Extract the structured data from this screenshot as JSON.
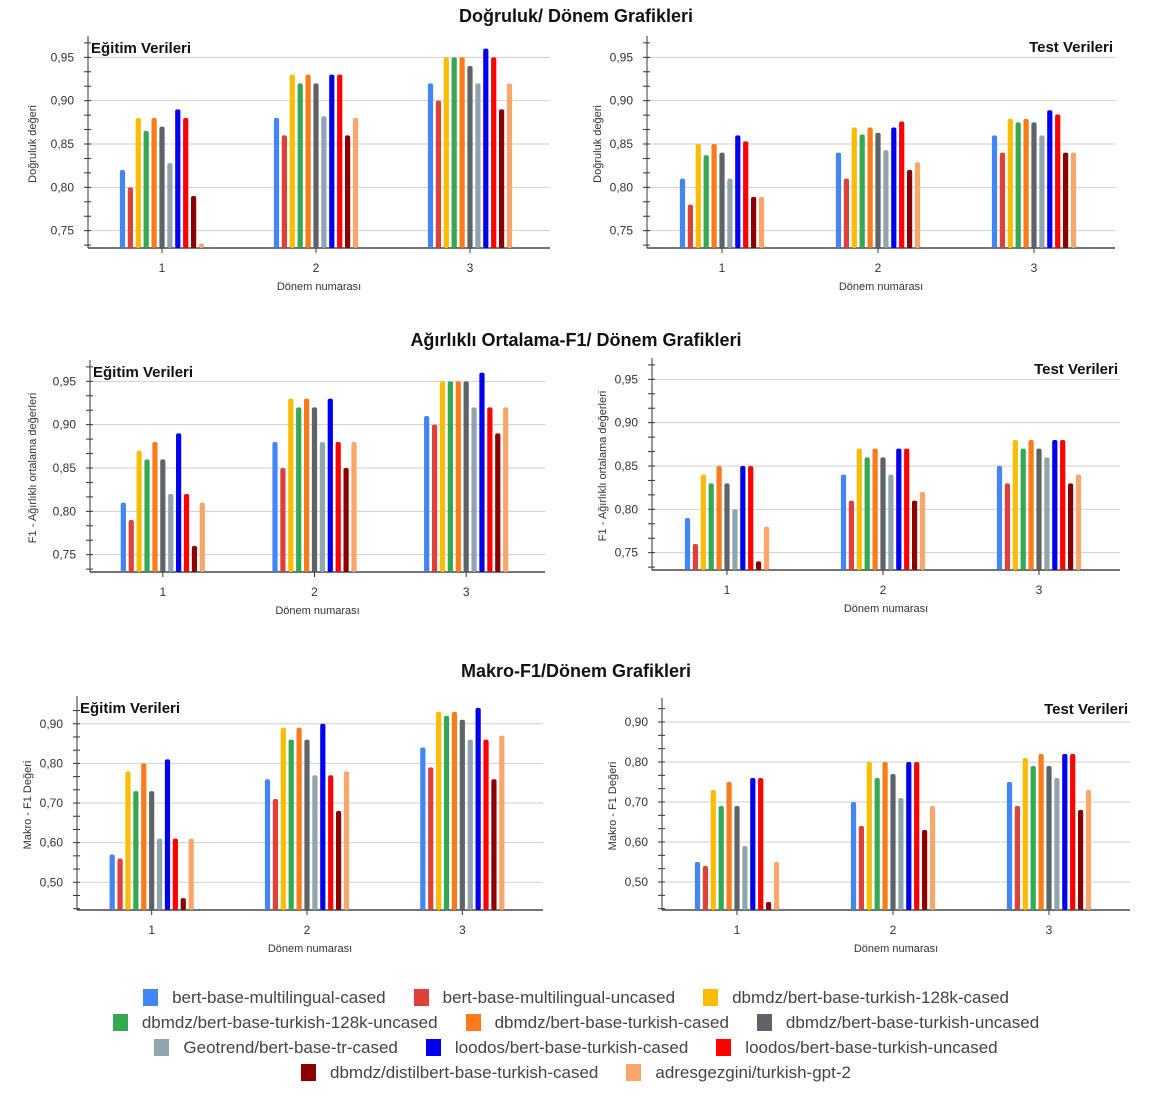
{
  "sections": [
    {
      "title": "Doğruluk/ Dönem Grafikleri"
    },
    {
      "title": "Ağırlıklı Ortalama-F1/ Dönem Grafikleri"
    },
    {
      "title": "Makro-F1/Dönem Grafikleri"
    }
  ],
  "legend": {
    "rows": [
      [
        0,
        1,
        2
      ],
      [
        3,
        4,
        5
      ],
      [
        6,
        7,
        8
      ],
      [
        9,
        10
      ]
    ]
  },
  "series_meta": [
    {
      "name": "bert-base-multilingual-cased",
      "color": "#4285f4"
    },
    {
      "name": "bert-base-multilingual-uncased",
      "color": "#e0403a"
    },
    {
      "name": "dbmdz/bert-base-turkish-128k-cased",
      "color": "#fbbc04"
    },
    {
      "name": "dbmdz/bert-base-turkish-128k-uncased",
      "color": "#34a853"
    },
    {
      "name": "dbmdz/bert-base-turkish-cased",
      "color": "#fa7b17"
    },
    {
      "name": "dbmdz/bert-base-turkish-uncased",
      "color": "#5f6368"
    },
    {
      "name": "Geotrend/bert-base-tr-cased",
      "color": "#8fa6b0"
    },
    {
      "name": "loodos/bert-base-turkish-cased",
      "color": "#0000ee"
    },
    {
      "name": "loodos/bert-base-turkish-uncased",
      "color": "#ff0000"
    },
    {
      "name": "dbmdz/distilbert-base-turkish-cased",
      "color": "#8b0000"
    },
    {
      "name": "adresgezgini/turkish-gpt-2",
      "color": "#f9a66c"
    }
  ],
  "chart_data": [
    {
      "type": "bar",
      "title": "Eğitim Verileri",
      "title_align": "left",
      "xlabel": "Dönem numarası",
      "ylabel": "Doğruluk değeri",
      "categories": [
        "1",
        "2",
        "3"
      ],
      "yticks": [
        "0,75",
        "0,80",
        "0,85",
        "0,90",
        "0,95"
      ],
      "ytick_values": [
        0.75,
        0.8,
        0.85,
        0.9,
        0.95
      ],
      "ylim": [
        0.73,
        0.97
      ],
      "grid": true,
      "series": [
        {
          "name": "bert-base-multilingual-cased",
          "values": [
            0.82,
            0.88,
            0.92
          ]
        },
        {
          "name": "bert-base-multilingual-uncased",
          "values": [
            0.8,
            0.86,
            0.9
          ]
        },
        {
          "name": "dbmdz/bert-base-turkish-128k-cased",
          "values": [
            0.88,
            0.93,
            0.95
          ]
        },
        {
          "name": "dbmdz/bert-base-turkish-128k-uncased",
          "values": [
            0.865,
            0.92,
            0.95
          ]
        },
        {
          "name": "dbmdz/bert-base-turkish-cased",
          "values": [
            0.88,
            0.93,
            0.95
          ]
        },
        {
          "name": "dbmdz/bert-base-turkish-uncased",
          "values": [
            0.87,
            0.92,
            0.94
          ]
        },
        {
          "name": "Geotrend/bert-base-tr-cased",
          "values": [
            0.828,
            0.882,
            0.92
          ]
        },
        {
          "name": "loodos/bert-base-turkish-cased",
          "values": [
            0.89,
            0.93,
            0.96
          ]
        },
        {
          "name": "loodos/bert-base-turkish-uncased",
          "values": [
            0.88,
            0.93,
            0.95
          ]
        },
        {
          "name": "dbmdz/distilbert-base-turkish-cased",
          "values": [
            0.79,
            0.86,
            0.89
          ]
        },
        {
          "name": "adresgezgini/turkish-gpt-2",
          "values": [
            0.735,
            0.88,
            0.92
          ]
        }
      ]
    },
    {
      "type": "bar",
      "title": "Test Verileri",
      "title_align": "right",
      "xlabel": "Dönem numarası",
      "ylabel": "Doğruluk değeri",
      "categories": [
        "1",
        "2",
        "3"
      ],
      "yticks": [
        "0,75",
        "0,80",
        "0,85",
        "0,90",
        "0,95"
      ],
      "ytick_values": [
        0.75,
        0.8,
        0.85,
        0.9,
        0.95
      ],
      "ylim": [
        0.73,
        0.97
      ],
      "grid": true,
      "series": [
        {
          "name": "bert-base-multilingual-cased",
          "values": [
            0.81,
            0.84,
            0.86
          ]
        },
        {
          "name": "bert-base-multilingual-uncased",
          "values": [
            0.78,
            0.81,
            0.84
          ]
        },
        {
          "name": "dbmdz/bert-base-turkish-128k-cased",
          "values": [
            0.85,
            0.869,
            0.879
          ]
        },
        {
          "name": "dbmdz/bert-base-turkish-128k-uncased",
          "values": [
            0.837,
            0.861,
            0.875
          ]
        },
        {
          "name": "dbmdz/bert-base-turkish-cased",
          "values": [
            0.85,
            0.869,
            0.879
          ]
        },
        {
          "name": "dbmdz/bert-base-turkish-uncased",
          "values": [
            0.84,
            0.863,
            0.875
          ]
        },
        {
          "name": "Geotrend/bert-base-tr-cased",
          "values": [
            0.81,
            0.843,
            0.86
          ]
        },
        {
          "name": "loodos/bert-base-turkish-cased",
          "values": [
            0.86,
            0.869,
            0.889
          ]
        },
        {
          "name": "loodos/bert-base-turkish-uncased",
          "values": [
            0.853,
            0.876,
            0.884
          ]
        },
        {
          "name": "dbmdz/distilbert-base-turkish-cased",
          "values": [
            0.789,
            0.82,
            0.84
          ]
        },
        {
          "name": "adresgezgini/turkish-gpt-2",
          "values": [
            0.789,
            0.829,
            0.84
          ]
        }
      ]
    },
    {
      "type": "bar",
      "title": "Eğitim Verileri",
      "title_align": "left",
      "xlabel": "Dönem numarası",
      "ylabel": "F1 - Ağırlıklı ortalama değerleri",
      "categories": [
        "1",
        "2",
        "3"
      ],
      "yticks": [
        "0,75",
        "0,80",
        "0,85",
        "0,90",
        "0,95"
      ],
      "ytick_values": [
        0.75,
        0.8,
        0.85,
        0.9,
        0.95
      ],
      "ylim": [
        0.73,
        0.97
      ],
      "grid": true,
      "series": [
        {
          "name": "bert-base-multilingual-cased",
          "values": [
            0.81,
            0.88,
            0.91
          ]
        },
        {
          "name": "bert-base-multilingual-uncased",
          "values": [
            0.79,
            0.85,
            0.9
          ]
        },
        {
          "name": "dbmdz/bert-base-turkish-128k-cased",
          "values": [
            0.87,
            0.93,
            0.95
          ]
        },
        {
          "name": "dbmdz/bert-base-turkish-128k-uncased",
          "values": [
            0.86,
            0.92,
            0.95
          ]
        },
        {
          "name": "dbmdz/bert-base-turkish-cased",
          "values": [
            0.88,
            0.93,
            0.95
          ]
        },
        {
          "name": "dbmdz/bert-base-turkish-uncased",
          "values": [
            0.86,
            0.92,
            0.95
          ]
        },
        {
          "name": "Geotrend/bert-base-tr-cased",
          "values": [
            0.82,
            0.88,
            0.92
          ]
        },
        {
          "name": "loodos/bert-base-turkish-cased",
          "values": [
            0.89,
            0.93,
            0.96
          ]
        },
        {
          "name": "loodos/bert-base-turkish-uncased",
          "values": [
            0.82,
            0.88,
            0.92
          ]
        },
        {
          "name": "dbmdz/distilbert-base-turkish-cased",
          "values": [
            0.76,
            0.85,
            0.89
          ]
        },
        {
          "name": "adresgezgini/turkish-gpt-2",
          "values": [
            0.81,
            0.88,
            0.92
          ]
        }
      ]
    },
    {
      "type": "bar",
      "title": "Test Verileri",
      "title_align": "right",
      "xlabel": "Dönem numarası",
      "ylabel": "F1 - Ağırlıklı ortalama değerleri",
      "categories": [
        "1",
        "2",
        "3"
      ],
      "yticks": [
        "0,75",
        "0,80",
        "0,85",
        "0,90",
        "0,95"
      ],
      "ytick_values": [
        0.75,
        0.8,
        0.85,
        0.9,
        0.95
      ],
      "ylim": [
        0.73,
        0.97
      ],
      "grid": true,
      "series": [
        {
          "name": "bert-base-multilingual-cased",
          "values": [
            0.79,
            0.84,
            0.85
          ]
        },
        {
          "name": "bert-base-multilingual-uncased",
          "values": [
            0.76,
            0.81,
            0.83
          ]
        },
        {
          "name": "dbmdz/bert-base-turkish-128k-cased",
          "values": [
            0.84,
            0.87,
            0.88
          ]
        },
        {
          "name": "dbmdz/bert-base-turkish-128k-uncased",
          "values": [
            0.83,
            0.86,
            0.87
          ]
        },
        {
          "name": "dbmdz/bert-base-turkish-cased",
          "values": [
            0.85,
            0.87,
            0.88
          ]
        },
        {
          "name": "dbmdz/bert-base-turkish-uncased",
          "values": [
            0.83,
            0.86,
            0.87
          ]
        },
        {
          "name": "Geotrend/bert-base-tr-cased",
          "values": [
            0.8,
            0.84,
            0.86
          ]
        },
        {
          "name": "loodos/bert-base-turkish-cased",
          "values": [
            0.85,
            0.87,
            0.88
          ]
        },
        {
          "name": "loodos/bert-base-turkish-uncased",
          "values": [
            0.85,
            0.87,
            0.88
          ]
        },
        {
          "name": "dbmdz/distilbert-base-turkish-cased",
          "values": [
            0.74,
            0.81,
            0.83
          ]
        },
        {
          "name": "adresgezgini/turkish-gpt-2",
          "values": [
            0.78,
            0.82,
            0.84
          ]
        }
      ]
    },
    {
      "type": "bar",
      "title": "Eğitim Verileri",
      "title_align": "left",
      "xlabel": "Dönem numarası",
      "ylabel": "Makro - F1 Değeri",
      "categories": [
        "1",
        "2",
        "3"
      ],
      "yticks": [
        "0,50",
        "0,60",
        "0,70",
        "0,80",
        "0,90"
      ],
      "ytick_values": [
        0.5,
        0.6,
        0.7,
        0.8,
        0.9
      ],
      "ylim": [
        0.43,
        0.96
      ],
      "grid": true,
      "series": [
        {
          "name": "bert-base-multilingual-cased",
          "values": [
            0.57,
            0.76,
            0.84
          ]
        },
        {
          "name": "bert-base-multilingual-uncased",
          "values": [
            0.56,
            0.71,
            0.79
          ]
        },
        {
          "name": "dbmdz/bert-base-turkish-128k-cased",
          "values": [
            0.78,
            0.89,
            0.93
          ]
        },
        {
          "name": "dbmdz/bert-base-turkish-128k-uncased",
          "values": [
            0.73,
            0.86,
            0.92
          ]
        },
        {
          "name": "dbmdz/bert-base-turkish-cased",
          "values": [
            0.8,
            0.89,
            0.93
          ]
        },
        {
          "name": "dbmdz/bert-base-turkish-uncased",
          "values": [
            0.73,
            0.86,
            0.91
          ]
        },
        {
          "name": "Geotrend/bert-base-tr-cased",
          "values": [
            0.61,
            0.77,
            0.86
          ]
        },
        {
          "name": "loodos/bert-base-turkish-cased",
          "values": [
            0.81,
            0.9,
            0.94
          ]
        },
        {
          "name": "loodos/bert-base-turkish-uncased",
          "values": [
            0.61,
            0.77,
            0.86
          ]
        },
        {
          "name": "dbmdz/distilbert-base-turkish-cased",
          "values": [
            0.46,
            0.68,
            0.76
          ]
        },
        {
          "name": "adresgezgini/turkish-gpt-2",
          "values": [
            0.61,
            0.78,
            0.87
          ]
        }
      ]
    },
    {
      "type": "bar",
      "title": "Test Verileri",
      "title_align": "right",
      "xlabel": "Dönem numarası",
      "ylabel": "Makro - F1 Değeri",
      "categories": [
        "1",
        "2",
        "3"
      ],
      "yticks": [
        "0,50",
        "0,60",
        "0,70",
        "0,80",
        "0,90"
      ],
      "ytick_values": [
        0.5,
        0.6,
        0.7,
        0.8,
        0.9
      ],
      "ylim": [
        0.43,
        0.95
      ],
      "grid": true,
      "series": [
        {
          "name": "bert-base-multilingual-cased",
          "values": [
            0.55,
            0.7,
            0.75
          ]
        },
        {
          "name": "bert-base-multilingual-uncased",
          "values": [
            0.54,
            0.64,
            0.69
          ]
        },
        {
          "name": "dbmdz/bert-base-turkish-128k-cased",
          "values": [
            0.73,
            0.8,
            0.81
          ]
        },
        {
          "name": "dbmdz/bert-base-turkish-128k-uncased",
          "values": [
            0.69,
            0.76,
            0.79
          ]
        },
        {
          "name": "dbmdz/bert-base-turkish-cased",
          "values": [
            0.75,
            0.8,
            0.82
          ]
        },
        {
          "name": "dbmdz/bert-base-turkish-uncased",
          "values": [
            0.69,
            0.77,
            0.79
          ]
        },
        {
          "name": "Geotrend/bert-base-tr-cased",
          "values": [
            0.59,
            0.71,
            0.76
          ]
        },
        {
          "name": "loodos/bert-base-turkish-cased",
          "values": [
            0.76,
            0.8,
            0.82
          ]
        },
        {
          "name": "loodos/bert-base-turkish-uncased",
          "values": [
            0.76,
            0.8,
            0.82
          ]
        },
        {
          "name": "dbmdz/distilbert-base-turkish-cased",
          "values": [
            0.45,
            0.63,
            0.68
          ]
        },
        {
          "name": "adresgezgini/turkish-gpt-2",
          "values": [
            0.55,
            0.69,
            0.73
          ]
        }
      ]
    }
  ]
}
